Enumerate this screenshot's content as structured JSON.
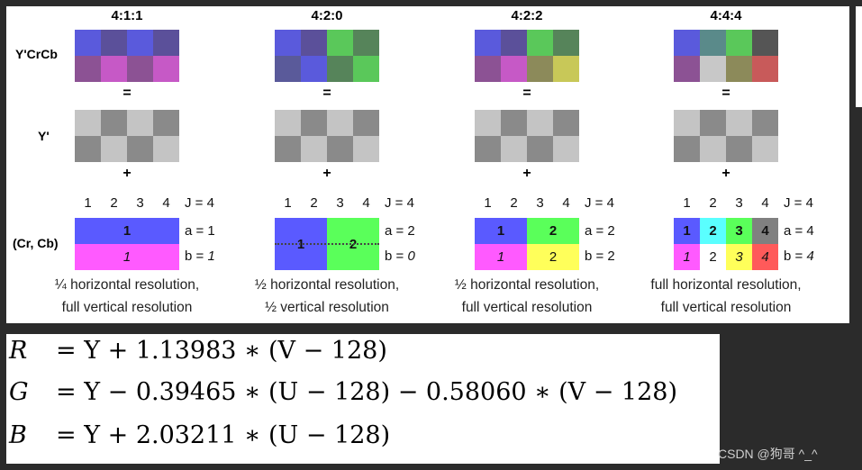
{
  "colors": {
    "blue": "#5a5adc",
    "purple": "#5b509a",
    "plum": "#8c5294",
    "magenta": "#c659c6",
    "green": "#5ac85a",
    "dkgreen": "#56845a",
    "olive": "#8c8a5a",
    "yellowish": "#c8c858",
    "teal": "#5a8a8a",
    "dkgray": "#555555",
    "ltgray": "#c8c8c8",
    "red": "#c85a5a",
    "slate": "#5a5a9a",
    "chroma_blue": "#5a5aff",
    "chroma_magenta": "#ff5aff",
    "chroma_green": "#5aff5a",
    "chroma_yellow": "#ffff5a",
    "chroma_cyan": "#5affff",
    "chroma_gray": "#808080",
    "chroma_red": "#ff5a5a",
    "chroma_white": "#ffffff",
    "luma_light": "#c4c4c4",
    "luma_dark": "#8a8a8a"
  },
  "labels": {
    "ycrcb": "Y'CrCb",
    "y": "Y'",
    "crcb": "(Cr, Cb)",
    "equals": "=",
    "plus": "+"
  },
  "schemes": [
    {
      "title": "4:1:1",
      "ycrcb_top": [
        "blue",
        "purple",
        "blue",
        "purple"
      ],
      "ycrcb_bottom": [
        "plum",
        "magenta",
        "plum",
        "magenta"
      ],
      "nums": [
        "1",
        "2",
        "3",
        "4"
      ],
      "j": "J = 4",
      "a": "a = 1",
      "b": "b = 1",
      "b_italic": true,
      "chroma_top": [
        {
          "label": "1",
          "color": "chroma_blue",
          "span": 4,
          "bold": true
        }
      ],
      "chroma_bottom": [
        {
          "label": "1",
          "color": "chroma_magenta",
          "span": 4,
          "italic": true
        }
      ],
      "caption1": "¼ horizontal resolution,",
      "caption2": "full vertical resolution"
    },
    {
      "title": "4:2:0",
      "ycrcb_top": [
        "blue",
        "purple",
        "green",
        "dkgreen"
      ],
      "ycrcb_bottom": [
        "slate",
        "blue",
        "dkgreen",
        "green"
      ],
      "nums": [
        "1",
        "2",
        "3",
        "4"
      ],
      "j": "J = 4",
      "a": "a = 2",
      "b": "b = 0",
      "b_italic": true,
      "merged": true,
      "chroma_top": [
        {
          "label": "1",
          "color": "chroma_blue",
          "span": 2,
          "bold": true
        },
        {
          "label": "2",
          "color": "chroma_green",
          "span": 2,
          "bold": true
        }
      ],
      "chroma_bottom": [],
      "caption1": "½ horizontal resolution,",
      "caption2": "½ vertical resolution"
    },
    {
      "title": "4:2:2",
      "ycrcb_top": [
        "blue",
        "purple",
        "green",
        "dkgreen"
      ],
      "ycrcb_bottom": [
        "plum",
        "magenta",
        "olive",
        "yellowish"
      ],
      "nums": [
        "1",
        "2",
        "3",
        "4"
      ],
      "j": "J = 4",
      "a": "a = 2",
      "b": "b = 2",
      "b_italic": false,
      "chroma_top": [
        {
          "label": "1",
          "color": "chroma_blue",
          "span": 2,
          "bold": true
        },
        {
          "label": "2",
          "color": "chroma_green",
          "span": 2,
          "bold": true
        }
      ],
      "chroma_bottom": [
        {
          "label": "1",
          "color": "chroma_magenta",
          "span": 2,
          "italic": true
        },
        {
          "label": "2",
          "color": "chroma_yellow",
          "span": 2
        }
      ],
      "caption1": "½ horizontal resolution,",
      "caption2": "full vertical resolution"
    },
    {
      "title": "4:4:4",
      "ycrcb_top": [
        "blue",
        "teal",
        "green",
        "dkgray"
      ],
      "ycrcb_bottom": [
        "plum",
        "ltgray",
        "olive",
        "red"
      ],
      "nums": [
        "1",
        "2",
        "3",
        "4"
      ],
      "j": "J = 4",
      "a": "a = 4",
      "b": "b = 4",
      "b_italic": true,
      "chroma_top": [
        {
          "label": "1",
          "color": "chroma_blue",
          "span": 1,
          "bold": true
        },
        {
          "label": "2",
          "color": "chroma_cyan",
          "span": 1,
          "bold": true
        },
        {
          "label": "3",
          "color": "chroma_green",
          "span": 1,
          "bold": true
        },
        {
          "label": "4",
          "color": "chroma_gray",
          "span": 1,
          "bold": true
        }
      ],
      "chroma_bottom": [
        {
          "label": "1",
          "color": "chroma_magenta",
          "span": 1,
          "italic": true
        },
        {
          "label": "2",
          "color": "chroma_white",
          "span": 1
        },
        {
          "label": "3",
          "color": "chroma_yellow",
          "span": 1,
          "italic": true
        },
        {
          "label": "4",
          "color": "chroma_red",
          "span": 1,
          "italic": true
        }
      ],
      "caption1": "full horizontal resolution,",
      "caption2": "full vertical resolution"
    }
  ],
  "formulas": [
    {
      "lhs": "R",
      "rhs": "= Y + 1.13983 ∗ (V − 128)"
    },
    {
      "lhs": "G",
      "rhs": "= Y − 0.39465 ∗ (U − 128) − 0.58060 ∗ (V − 128)"
    },
    {
      "lhs": "B",
      "rhs": "= Y + 2.03211 ∗ (U − 128)"
    }
  ],
  "watermark": "CSDN @狗哥 ^_^"
}
